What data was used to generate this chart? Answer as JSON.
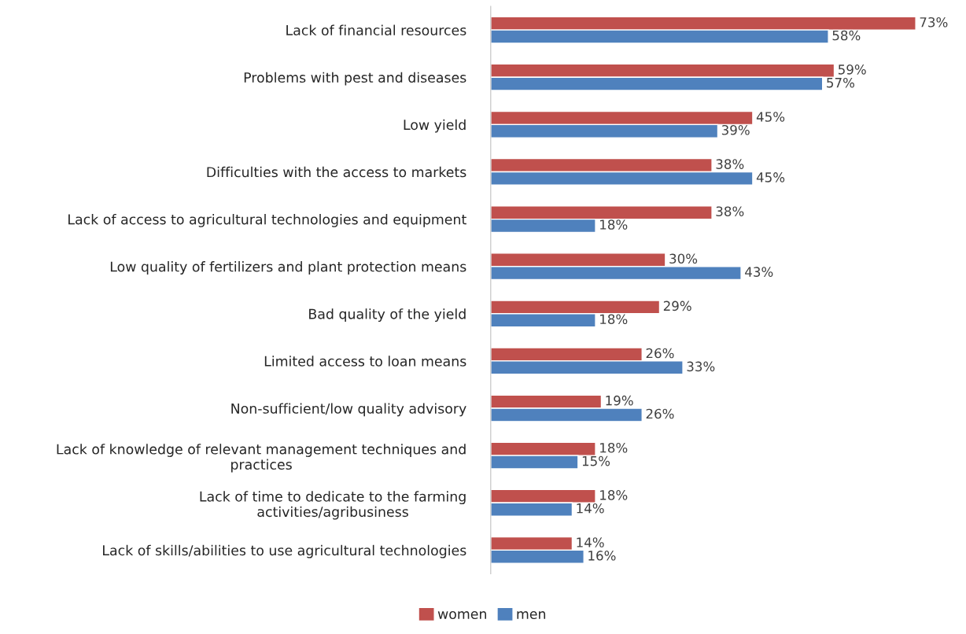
{
  "chart_data": {
    "type": "bar",
    "orientation": "horizontal",
    "legend": "bottom",
    "grid": false,
    "categories": [
      "Lack of financial resources",
      "Problems with pest and diseases",
      "Low yield",
      "Difficulties with the access to markets",
      "Lack of access to agricultural technologies and equipment",
      "Low quality of fertilizers and plant protection means",
      "Bad quality of the yield",
      "Limited access to loan means",
      "Non-sufficient/low quality advisory",
      "Lack of knowledge of relevant management techniques and\npractices",
      "Lack of time to dedicate to the farming\nactivities/agribusiness",
      "Lack of skills/abilities to use agricultural technologies"
    ],
    "series": [
      {
        "name": "women",
        "color": "#c0504d",
        "values": [
          73,
          59,
          45,
          38,
          38,
          30,
          29,
          26,
          19,
          18,
          18,
          14
        ],
        "value_labels": [
          "73%",
          "59%",
          "45%",
          "38%",
          "38%",
          "30%",
          "29%",
          "26%",
          "19%",
          "18%",
          "18%",
          "14%"
        ]
      },
      {
        "name": "men",
        "color": "#4f81bd",
        "values": [
          58,
          57,
          39,
          45,
          18,
          43,
          18,
          33,
          26,
          15,
          14,
          16
        ],
        "value_labels": [
          "58%",
          "57%",
          "39%",
          "45%",
          "18%",
          "43%",
          "18%",
          "33%",
          "26%",
          "15%",
          "14%",
          "16%"
        ]
      }
    ]
  }
}
